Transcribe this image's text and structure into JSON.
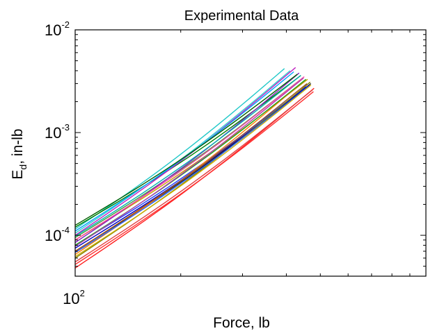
{
  "chart_data": {
    "type": "line",
    "title": "Experimental Data",
    "xlabel": "Force, lb",
    "ylabel_main": "E",
    "ylabel_sub": "d",
    "ylabel_rest": ", in-lb",
    "xscale": "log",
    "yscale": "log",
    "xlim": [
      100,
      1000
    ],
    "ylim": [
      4e-05,
      0.01
    ],
    "grid": false,
    "legend": "none",
    "x_ticks": [
      {
        "value": 100,
        "base": "10",
        "exp": "2"
      }
    ],
    "y_ticks": [
      {
        "value": 0.01,
        "base": "10",
        "exp": "-2"
      },
      {
        "value": 0.001,
        "base": "10",
        "exp": "-3"
      },
      {
        "value": 0.0001,
        "base": "10",
        "exp": "-4"
      }
    ],
    "series": [
      {
        "color": "#1f3fff",
        "x_start": 100,
        "y_start": 8e-05,
        "x_end": 455,
        "y_end": 0.0028
      },
      {
        "color": "#ff2020",
        "x_start": 100,
        "y_start": 4.8e-05,
        "x_end": 480,
        "y_end": 0.0027
      },
      {
        "color": "#20c8c8",
        "x_start": 100,
        "y_start": 0.000115,
        "x_end": 395,
        "y_end": 0.0042
      },
      {
        "color": "#008000",
        "x_start": 100,
        "y_start": 0.00012,
        "x_end": 440,
        "y_end": 0.0036
      },
      {
        "color": "#c020c0",
        "x_start": 100,
        "y_start": 0.0001,
        "x_end": 425,
        "y_end": 0.0043
      },
      {
        "color": "#c8a000",
        "x_start": 100,
        "y_start": 9e-05,
        "x_end": 460,
        "y_end": 0.0033
      },
      {
        "color": "#202020",
        "x_start": 100,
        "y_start": 7e-05,
        "x_end": 470,
        "y_end": 0.003
      },
      {
        "color": "#ff8000",
        "x_start": 100,
        "y_start": 6.5e-05,
        "x_end": 450,
        "y_end": 0.0032
      },
      {
        "color": "#40a040",
        "x_start": 100,
        "y_start": 9.5e-05,
        "x_end": 445,
        "y_end": 0.0034
      },
      {
        "color": "#0000c0",
        "x_start": 100,
        "y_start": 7.5e-05,
        "x_end": 465,
        "y_end": 0.0029
      },
      {
        "color": "#e04040",
        "x_start": 100,
        "y_start": 5.5e-05,
        "x_end": 475,
        "y_end": 0.0026
      },
      {
        "color": "#30d0d0",
        "x_start": 100,
        "y_start": 0.000105,
        "x_end": 410,
        "y_end": 0.004
      },
      {
        "color": "#8020c0",
        "x_start": 100,
        "y_start": 8.5e-05,
        "x_end": 435,
        "y_end": 0.0038
      },
      {
        "color": "#808000",
        "x_start": 100,
        "y_start": 6e-05,
        "x_end": 468,
        "y_end": 0.0031
      },
      {
        "color": "#00a0ff",
        "x_start": 100,
        "y_start": 0.00011,
        "x_end": 420,
        "y_end": 0.0039
      },
      {
        "color": "#ff40a0",
        "x_start": 100,
        "y_start": 9e-05,
        "x_end": 450,
        "y_end": 0.0035
      },
      {
        "color": "#006000",
        "x_start": 100,
        "y_start": 0.000125,
        "x_end": 430,
        "y_end": 0.0037
      },
      {
        "color": "#a05020",
        "x_start": 100,
        "y_start": 7e-05,
        "x_end": 458,
        "y_end": 0.003
      },
      {
        "color": "#2060ff",
        "x_start": 100,
        "y_start": 6.8e-05,
        "x_end": 462,
        "y_end": 0.0028
      },
      {
        "color": "#ff3030",
        "x_start": 100,
        "y_start": 5.2e-05,
        "x_end": 478,
        "y_end": 0.0025
      },
      {
        "color": "#00b0b0",
        "x_start": 100,
        "y_start": 9.8e-05,
        "x_end": 440,
        "y_end": 0.0036
      },
      {
        "color": "#20a020",
        "x_start": 100,
        "y_start": 8e-05,
        "x_end": 455,
        "y_end": 0.0033
      },
      {
        "color": "#b040b0",
        "x_start": 100,
        "y_start": 7.8e-05,
        "x_end": 448,
        "y_end": 0.0034
      },
      {
        "color": "#d0b000",
        "x_start": 100,
        "y_start": 6.2e-05,
        "x_end": 470,
        "y_end": 0.0029
      }
    ]
  }
}
